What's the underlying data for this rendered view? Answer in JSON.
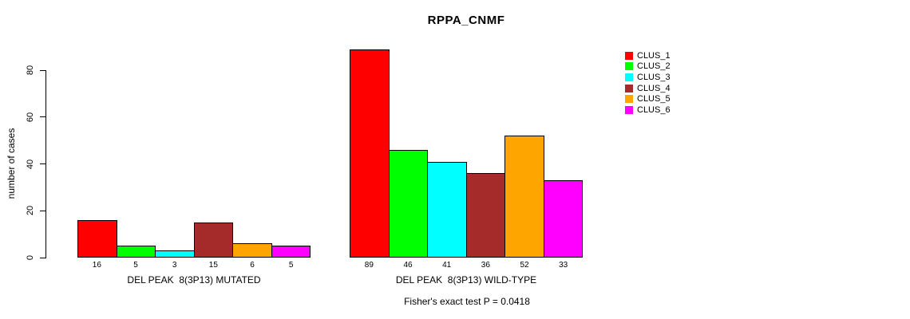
{
  "chart_data": {
    "type": "bar",
    "title": "RPPA_CNMF",
    "ylabel": "number of cases",
    "yticks": [
      0,
      20,
      40,
      60,
      80
    ],
    "ylim": [
      0,
      89
    ],
    "grid": false,
    "legend_position": "top-right",
    "categories": [
      "CLUS_1",
      "CLUS_2",
      "CLUS_3",
      "CLUS_4",
      "CLUS_5",
      "CLUS_6"
    ],
    "series_colors": [
      "#FF0000",
      "#00FF00",
      "#00FFFF",
      "#A52A2A",
      "#FFA500",
      "#FF00FF"
    ],
    "groups": [
      {
        "label": "DEL PEAK  8(3P13) MUTATED",
        "values": [
          16,
          5,
          3,
          15,
          6,
          5
        ]
      },
      {
        "label": "DEL PEAK  8(3P13) WILD-TYPE",
        "values": [
          89,
          46,
          41,
          36,
          52,
          33
        ]
      }
    ],
    "legend": [
      {
        "label": "CLUS_1",
        "color": "#FF0000"
      },
      {
        "label": "CLUS_2",
        "color": "#00FF00"
      },
      {
        "label": "CLUS_3",
        "color": "#00FFFF"
      },
      {
        "label": "CLUS_4",
        "color": "#A52A2A"
      },
      {
        "label": "CLUS_5",
        "color": "#FFA500"
      },
      {
        "label": "CLUS_6",
        "color": "#FF00FF"
      }
    ],
    "footnote": "Fisher's exact test P = 0.0418",
    "axis_color": "#000000",
    "bar_border_color": "#000000"
  }
}
